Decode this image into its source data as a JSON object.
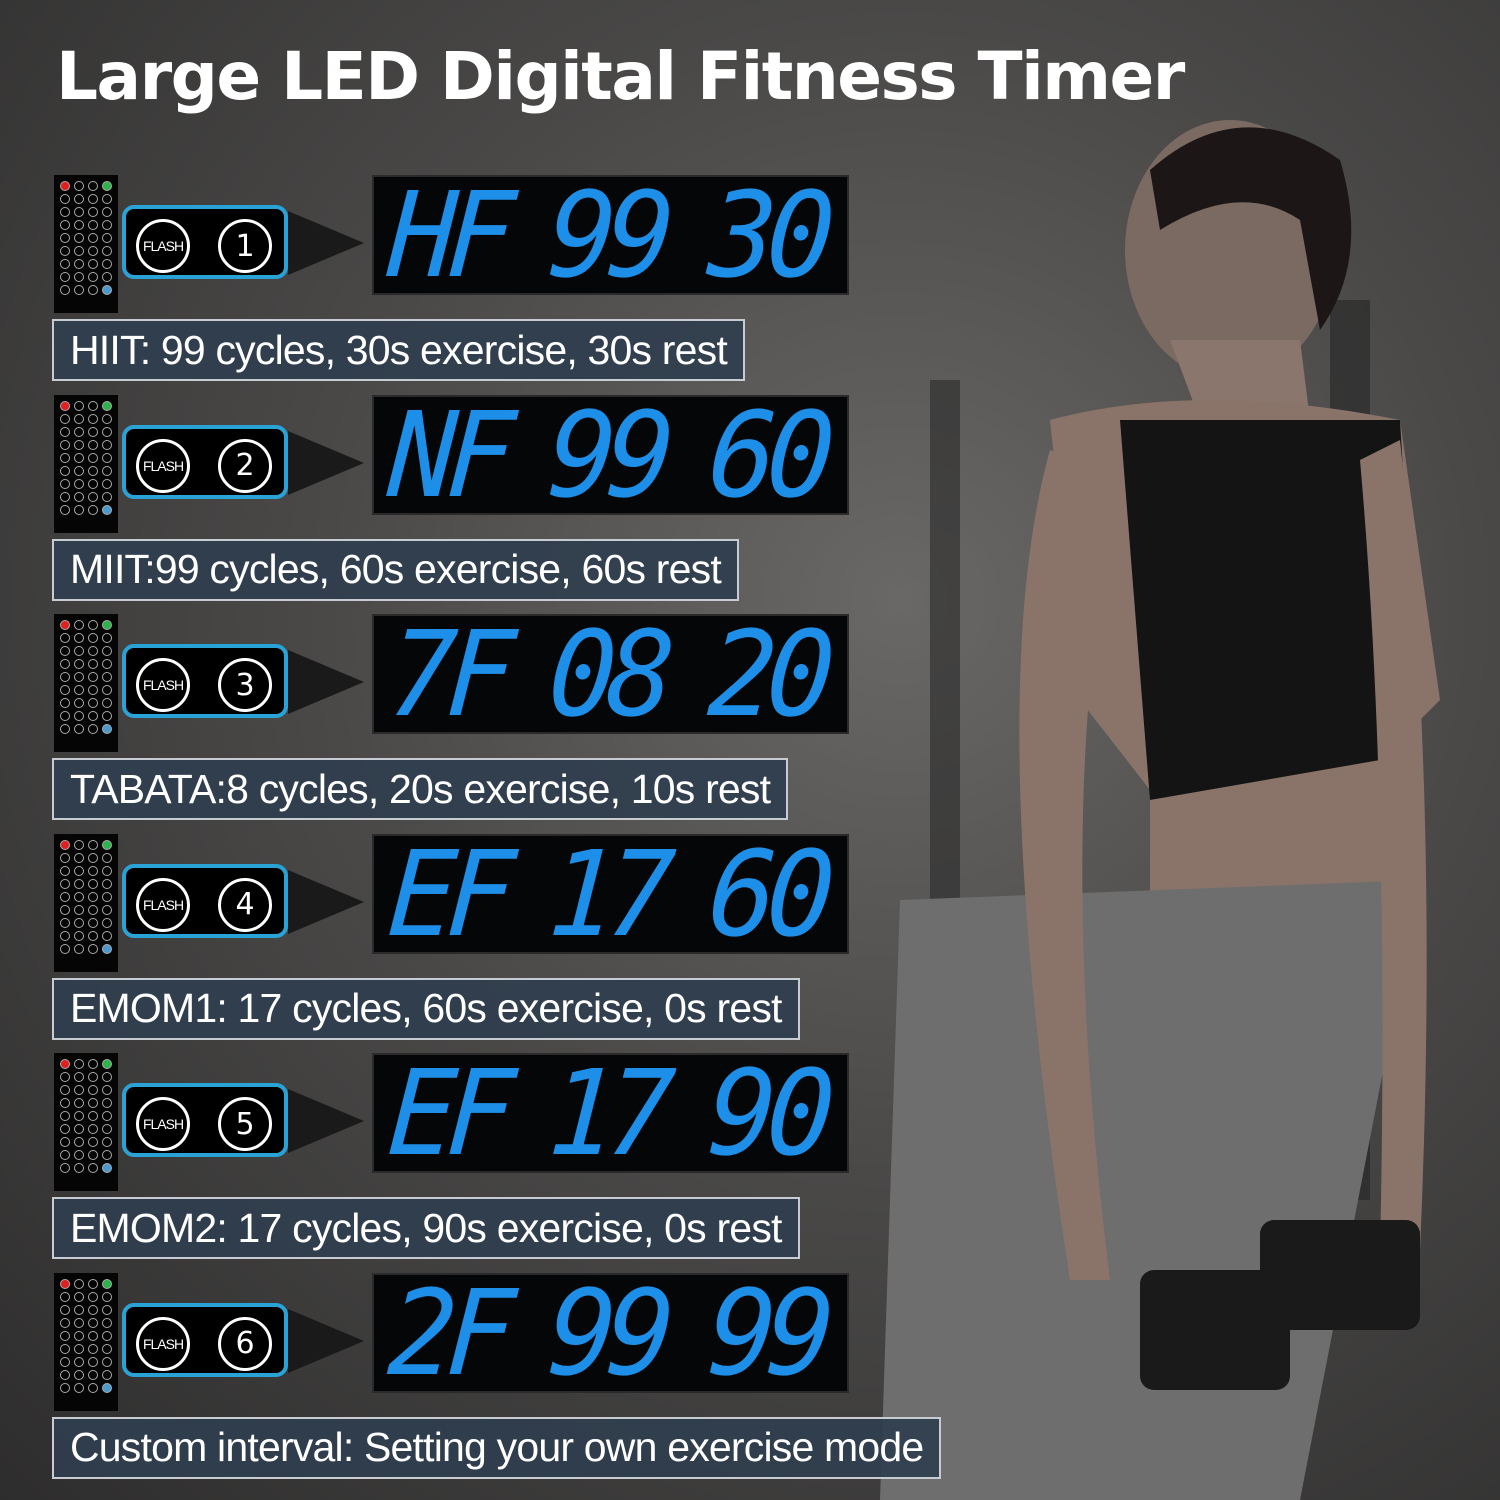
{
  "title": "Large LED Digital Fitness Timer",
  "button_label": "FLASH",
  "colors": {
    "led": "#1e8fe8",
    "callout_border": "#29a3d6",
    "label_bg": "#303e4e"
  },
  "modes": [
    {
      "number": "1",
      "display": {
        "mode": "HF",
        "cycles": "99",
        "seconds": "30"
      },
      "label": "HIIT: 99 cycles, 30s exercise, 30s rest"
    },
    {
      "number": "2",
      "display": {
        "mode": "NF",
        "cycles": "99",
        "seconds": "60"
      },
      "label": "MIIT:99 cycles, 60s exercise, 60s rest"
    },
    {
      "number": "3",
      "display": {
        "mode": "7F",
        "cycles": "08",
        "seconds": "20"
      },
      "label": "TABATA:8 cycles, 20s exercise, 10s rest"
    },
    {
      "number": "4",
      "display": {
        "mode": "EF",
        "cycles": "17",
        "seconds": "60"
      },
      "label": "EMOM1: 17 cycles, 60s exercise, 0s rest"
    },
    {
      "number": "5",
      "display": {
        "mode": "EF",
        "cycles": "17",
        "seconds": "90"
      },
      "label": "EMOM2: 17 cycles, 90s exercise, 0s rest"
    },
    {
      "number": "6",
      "display": {
        "mode": "2F",
        "cycles": "99",
        "seconds": "99"
      },
      "label": "Custom interval: Setting your own exercise mode"
    }
  ]
}
